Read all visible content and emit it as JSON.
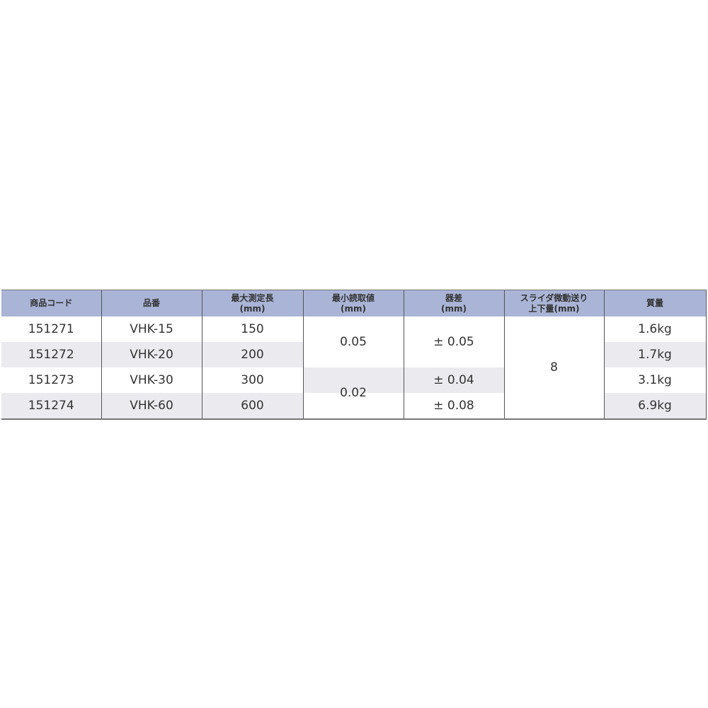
{
  "table": {
    "headers": [
      {
        "line1": "商品コード",
        "line2": ""
      },
      {
        "line1": "品番",
        "line2": ""
      },
      {
        "line1": "最大測定長",
        "line2": "(mm)"
      },
      {
        "line1": "最小読取値",
        "line2": "(mm)"
      },
      {
        "line1": "器差",
        "line2": "(mm)"
      },
      {
        "line1": "スライダ微動送り",
        "line2": "上下量(mm)"
      },
      {
        "line1": "質量",
        "line2": ""
      }
    ],
    "rows": [
      {
        "code": "151271",
        "model": "VHK-15",
        "length": "150",
        "weight": "1.6kg"
      },
      {
        "code": "151272",
        "model": "VHK-20",
        "length": "200",
        "weight": "1.7kg"
      },
      {
        "code": "151273",
        "model": "VHK-30",
        "length": "300",
        "weight": "3.1kg"
      },
      {
        "code": "151274",
        "model": "VHK-60",
        "length": "600",
        "weight": "6.9kg"
      }
    ],
    "resolution": [
      "0.05",
      "0.02"
    ],
    "accuracy": [
      "± 0.05",
      "± 0.04",
      "± 0.08"
    ],
    "fine_feed": "8"
  },
  "colors": {
    "header_bg": "#a9b4d6",
    "stripe": "#ebebef"
  }
}
